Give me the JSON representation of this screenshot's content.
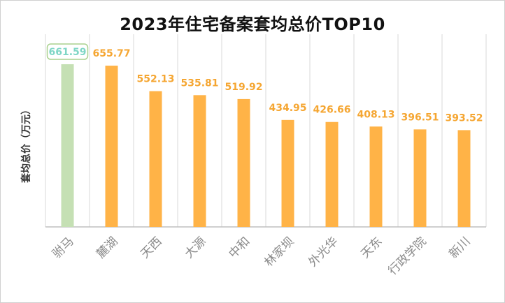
{
  "chart_data": {
    "type": "bar",
    "title": "2023年住宅备案套均总价TOP10",
    "ylabel": "套均总价（万元）",
    "xlabel": "",
    "categories": [
      "驸马",
      "麓湖",
      "天西",
      "大源",
      "中和",
      "林家坝",
      "外光华",
      "天东",
      "行政学院",
      "新川"
    ],
    "values": [
      661.59,
      655.77,
      552.13,
      535.81,
      519.92,
      434.95,
      426.66,
      408.13,
      396.51,
      393.52
    ],
    "value_labels": [
      "661.59",
      "655.77",
      "552.13",
      "535.81",
      "519.92",
      "434.95",
      "426.66",
      "408.13",
      "396.51",
      "393.52"
    ],
    "ylim": [
      0,
      661.59
    ],
    "highlight_index": 0,
    "grid": false,
    "vertical_separators": true,
    "legend": "none",
    "colors": {
      "bar": "#ffb347",
      "bar_highlight": "#c5e0b4",
      "label": "#f5a632",
      "label_highlight": "#7fd6c6",
      "highlight_box_border": "#a9d18e",
      "separator": "#d9d9d9",
      "axis": "#bfbfbf"
    }
  }
}
